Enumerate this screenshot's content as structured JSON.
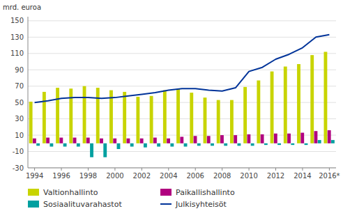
{
  "chart_data": {
    "type": "bar",
    "ylabel": "mrd. euroa",
    "categories": [
      "1994",
      null,
      "1996",
      null,
      "1998",
      null,
      "2000",
      null,
      "2002",
      null,
      "2004",
      null,
      "2006",
      null,
      "2008",
      null,
      "2010",
      null,
      "2012",
      null,
      "2014",
      null,
      "2016*"
    ],
    "series": [
      {
        "name": "Valtionhallinto",
        "type": "bar",
        "color": "#c8d400",
        "values": [
          51,
          63,
          68,
          67,
          70,
          68,
          65,
          63,
          57,
          58,
          65,
          67,
          62,
          56,
          53,
          53,
          69,
          77,
          88,
          94,
          97,
          108,
          112
        ]
      },
      {
        "name": "Paikallishallinto",
        "type": "bar",
        "color": "#b0007f",
        "values": [
          6,
          7,
          7,
          7,
          7,
          6,
          6,
          6,
          6,
          7,
          6,
          8,
          9,
          9,
          10,
          10,
          11,
          11,
          12,
          12,
          13,
          15,
          16
        ]
      },
      {
        "name": "Sosiaalituvarahastot",
        "type": "bar",
        "color": "#00a0a0",
        "values": [
          -3,
          -4,
          -4,
          -4,
          -17,
          -17,
          -7,
          -4,
          -5,
          -4,
          -4,
          -4,
          -3,
          -3,
          -3,
          -3,
          -3,
          -2,
          -2,
          -2,
          -2,
          4,
          4
        ]
      },
      {
        "name": "Julkisyhteisöt",
        "type": "line",
        "color": "#003399",
        "values": [
          50,
          52,
          55,
          56,
          56,
          55,
          56,
          58,
          60,
          62,
          65,
          67,
          67,
          65,
          64,
          68,
          88,
          93,
          103,
          109,
          117,
          130,
          133
        ]
      }
    ],
    "ylim": [
      -30,
      155
    ],
    "yticks": [
      -30,
      -10,
      10,
      30,
      50,
      70,
      90,
      110,
      130,
      150
    ],
    "grid": true,
    "legend": "bottom"
  }
}
